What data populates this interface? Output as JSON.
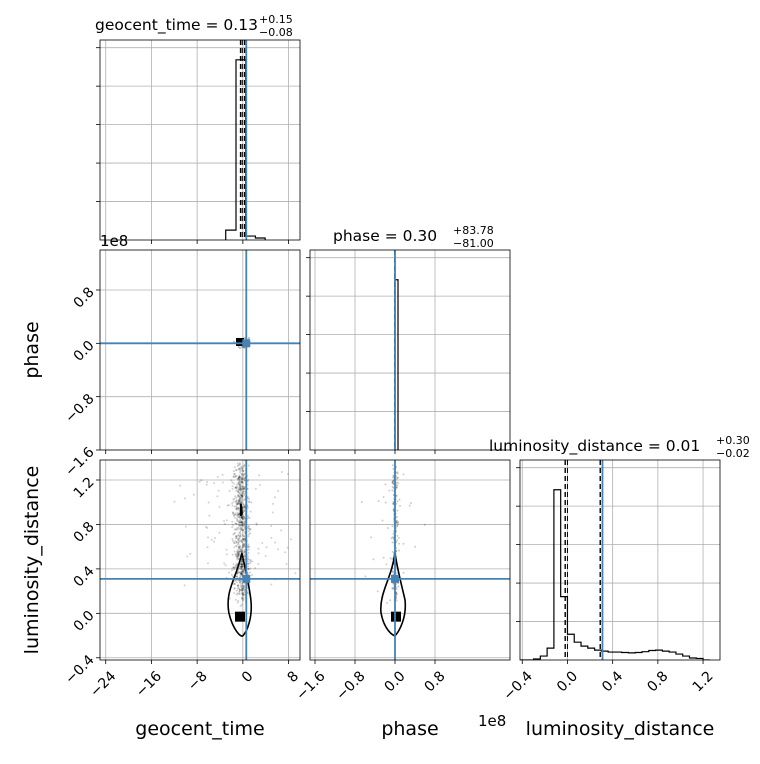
{
  "chart_data": {
    "type": "corner",
    "parameters": [
      "geocent_time",
      "phase",
      "luminosity_distance"
    ],
    "colors": {
      "truth": "#4682b4",
      "hist": "#000000",
      "grid": "#b0b0b0",
      "points": "#000000"
    },
    "titles": {
      "geocent_time": {
        "name": "geocent_time",
        "median": "0.13",
        "plus": "+0.15",
        "minus": "−0.08"
      },
      "phase": {
        "name": "phase",
        "median": "0.30",
        "plus": "+83.78",
        "minus": "−81.00"
      },
      "luminosity_distance": {
        "name": "luminosity_distance",
        "median": "0.01",
        "plus": "+0.30",
        "minus": "−0.02"
      }
    },
    "axes": {
      "geocent_time": {
        "range": [
          -25,
          10
        ],
        "ticks": [
          -24,
          -16,
          -8,
          0,
          8
        ],
        "tick_labels": [
          "−24",
          "−16",
          "−8",
          "0",
          "8"
        ],
        "label": "geocent_time"
      },
      "phase": {
        "range": [
          -1.7,
          2.3
        ],
        "ticks": [
          -1.6,
          -0.8,
          0.0,
          0.8
        ],
        "tick_labels": [
          "−1.6",
          "−0.8",
          "0.0",
          "0.8"
        ],
        "label": "phase",
        "exponent": "1e8"
      },
      "phase_y": {
        "range": [
          -1.6,
          1.4
        ],
        "ticks": [
          -1.6,
          -0.8,
          0.0,
          0.8
        ],
        "tick_labels": [
          "−1.6",
          "−0.8",
          "0.0",
          "0.8"
        ],
        "exponent": "1e8"
      },
      "luminosity_distance": {
        "range": [
          -0.42,
          1.35
        ],
        "ticks": [
          -0.4,
          0.0,
          0.4,
          0.8,
          1.2
        ],
        "tick_labels": [
          "−0.4",
          "0.0",
          "0.4",
          "0.8",
          "1.2"
        ],
        "label": "luminosity_distance"
      },
      "luminosity_distance_y": {
        "range": [
          -0.42,
          1.38
        ],
        "ticks": [
          -0.4,
          0.0,
          0.4,
          0.8,
          1.2
        ],
        "tick_labels": [
          "−0.4",
          "0.0",
          "0.4",
          "0.8",
          "1.2"
        ]
      }
    },
    "truths": {
      "geocent_time": 0.6,
      "phase": 0.0,
      "luminosity_distance": 0.31
    },
    "quantiles": {
      "geocent_time": [
        0.05,
        0.13,
        0.28
      ],
      "phase": [
        -0.01,
        0.0,
        0.0
      ],
      "luminosity_distance": [
        -0.01,
        0.01,
        0.31
      ]
    },
    "hist_geocent_time": {
      "edges": [
        -3,
        -1.2,
        0.5,
        2.2,
        3.9
      ],
      "counts": [
        0.05,
        0.91,
        0.02,
        0.01
      ]
    },
    "hist_phase": {
      "edges": [
        -0.015,
        0.0,
        0.06
      ],
      "counts": [
        0.0,
        0.86
      ]
    },
    "hist_luminosity_distance": {
      "edges": [
        -0.42,
        -0.36,
        -0.3,
        -0.24,
        -0.18,
        -0.12,
        -0.06,
        0.0,
        0.06,
        0.12,
        0.18,
        0.24,
        0.3,
        0.36,
        0.42,
        0.48,
        0.54,
        0.6,
        0.66,
        0.72,
        0.78,
        0.84,
        0.9,
        0.96,
        1.02,
        1.08,
        1.14,
        1.2,
        1.26
      ],
      "counts": [
        0.0,
        0.0,
        0.005,
        0.02,
        0.06,
        0.86,
        0.32,
        0.13,
        0.09,
        0.07,
        0.06,
        0.05,
        0.045,
        0.04,
        0.04,
        0.038,
        0.036,
        0.038,
        0.042,
        0.048,
        0.05,
        0.045,
        0.04,
        0.03,
        0.02,
        0.01,
        0.008,
        0.0
      ]
    },
    "dense_markers": [
      {
        "panel": "phase_vs_geocent_time",
        "x": -0.5,
        "y": 0.02
      },
      {
        "panel": "ld_vs_geocent_time",
        "x": -0.5,
        "y": -0.03
      },
      {
        "panel": "ld_vs_phase",
        "x": 0.02,
        "y": -0.03
      }
    ],
    "grid": true
  }
}
